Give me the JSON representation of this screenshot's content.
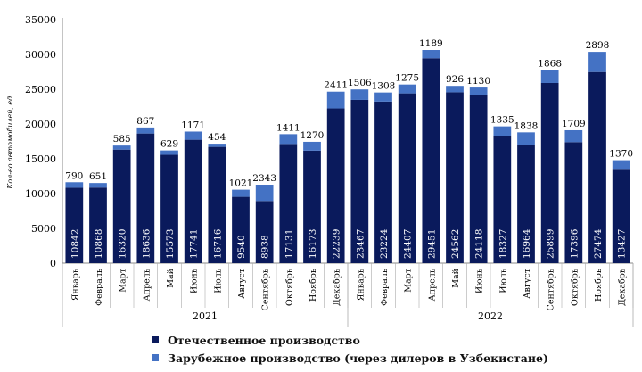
{
  "chart_data": {
    "type": "bar",
    "stacked": true,
    "ylabel": "Кол-во автомобилей, ед.",
    "ylim": [
      0,
      35000
    ],
    "yticks": [
      0,
      5000,
      10000,
      15000,
      20000,
      25000,
      30000,
      35000
    ],
    "categories": [
      "Январь",
      "Февраль",
      "Март",
      "Апрель",
      "Май",
      "Июнь",
      "Июль",
      "Август",
      "Сентябрь",
      "Октябрь",
      "Ноябрь",
      "Декабрь",
      "Январь",
      "Февраль",
      "Март",
      "Апрель",
      "Май",
      "Июнь",
      "Июль",
      "Август",
      "Сентябрь",
      "Октябрь",
      "Ноябрь",
      "Декабрь"
    ],
    "groups": [
      {
        "label": "2021",
        "count": 12
      },
      {
        "label": "2022",
        "count": 12
      }
    ],
    "series": [
      {
        "name": "Отечественное производство",
        "color": "#0a1a5c",
        "values": [
          10842,
          10868,
          16320,
          18636,
          15573,
          17741,
          16716,
          9540,
          8938,
          17131,
          16173,
          22239,
          23467,
          23224,
          24407,
          29451,
          24562,
          24118,
          18327,
          16964,
          25899,
          17396,
          27474,
          13427
        ]
      },
      {
        "name": "Зарубежное производство (через дилеров в Узбекистане)",
        "color": "#4472c4",
        "values": [
          790,
          651,
          585,
          867,
          629,
          1171,
          454,
          1021,
          2343,
          1411,
          1270,
          2411,
          1506,
          1308,
          1275,
          1189,
          926,
          1130,
          1335,
          1838,
          1868,
          1709,
          2898,
          1370
        ]
      }
    ],
    "grid": false,
    "legend_position": "bottom"
  }
}
